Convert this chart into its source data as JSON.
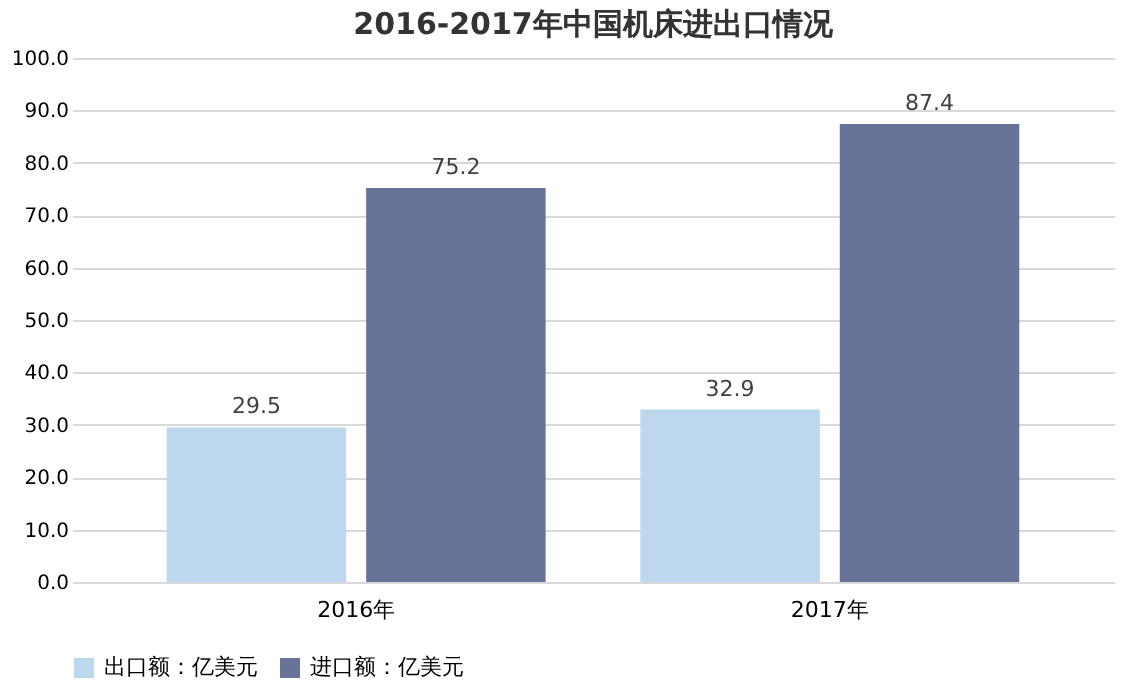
{
  "chart_data": {
    "type": "bar",
    "title": "2016-2017年中国机床进出口情况",
    "categories": [
      "2016年",
      "2017年"
    ],
    "series": [
      {
        "name": "出口额：亿美元",
        "color": "#bdd7ee",
        "values": [
          29.5,
          32.9
        ]
      },
      {
        "name": "进口额：亿美元",
        "color": "#68739a",
        "values": [
          75.2,
          87.4
        ]
      }
    ],
    "ylim": [
      0,
      100
    ],
    "yticks": [
      {
        "value": 0,
        "label": "0.0"
      },
      {
        "value": 10,
        "label": "10.0"
      },
      {
        "value": 20,
        "label": "20.0"
      },
      {
        "value": 30,
        "label": "30.0"
      },
      {
        "value": 40,
        "label": "40.0"
      },
      {
        "value": 50,
        "label": "50.0"
      },
      {
        "value": 60,
        "label": "60.0"
      },
      {
        "value": 70,
        "label": "70.0"
      },
      {
        "value": 80,
        "label": "80.0"
      },
      {
        "value": 90,
        "label": "90.0"
      },
      {
        "value": 100,
        "label": "100.0"
      }
    ],
    "grid": "y",
    "legend": "bottom",
    "data_labels": true
  }
}
